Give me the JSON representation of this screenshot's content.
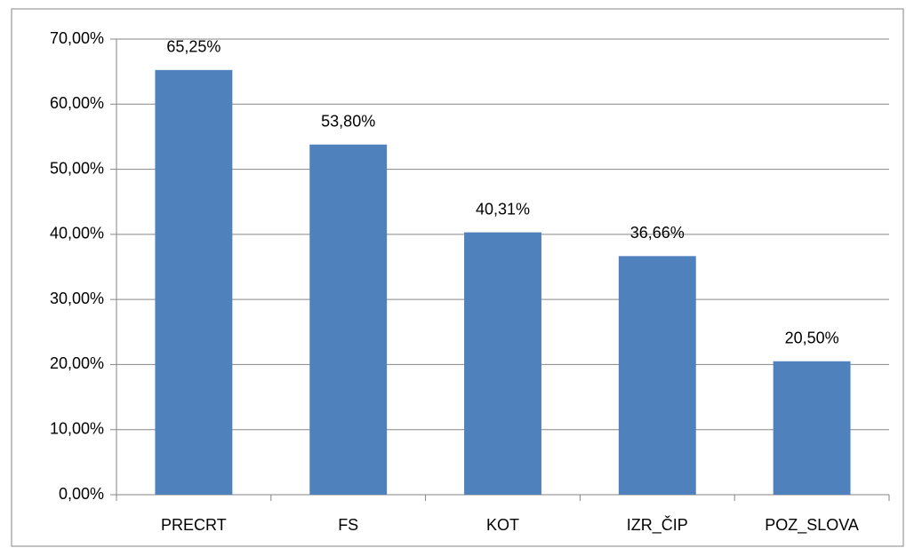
{
  "chart_data": {
    "type": "bar",
    "categories": [
      "PRECRT",
      "FS",
      "KOT",
      "IZR_ČIP",
      "POZ_SLOVA"
    ],
    "values": [
      65.25,
      53.8,
      40.31,
      36.66,
      20.5
    ],
    "value_labels": [
      "65,25%",
      "53,80%",
      "40,31%",
      "36,66%",
      "20,50%"
    ],
    "color": "#4f81bd",
    "ylim": [
      0,
      70
    ],
    "yticks": [
      {
        "value": 0,
        "label": "0,00%"
      },
      {
        "value": 10,
        "label": "10,00%"
      },
      {
        "value": 20,
        "label": "20,00%"
      },
      {
        "value": 30,
        "label": "30,00%"
      },
      {
        "value": 40,
        "label": "40,00%"
      },
      {
        "value": 50,
        "label": "50,00%"
      },
      {
        "value": 60,
        "label": "60,00%"
      },
      {
        "value": 70,
        "label": "70,00%"
      }
    ],
    "grid": true
  }
}
